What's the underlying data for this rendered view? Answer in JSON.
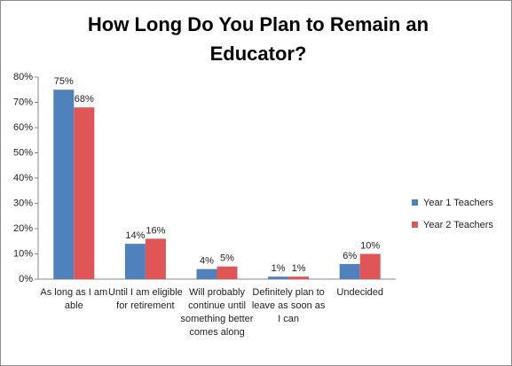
{
  "chart_data": {
    "type": "bar",
    "title": "How Long Do You Plan to Remain an Educator?",
    "categories": [
      "As long as I am able",
      "Until I am eligible for retirement",
      "Will probably continue until something better comes along",
      "Definitely plan to leave as soon as I can",
      "Undecided"
    ],
    "series": [
      {
        "name": "Year 1 Teachers",
        "color": "#4f81bd",
        "values": [
          75,
          14,
          4,
          1,
          6
        ],
        "value_labels": [
          "75%",
          "14%",
          "4%",
          "1%",
          "6%"
        ]
      },
      {
        "name": "Year 2 Teachers",
        "color": "#e05555",
        "values": [
          68,
          16,
          5,
          1,
          10
        ],
        "value_labels": [
          "68%",
          "16%",
          "5%",
          "1%",
          "10%"
        ]
      }
    ],
    "ylim": [
      0,
      80
    ],
    "yticks": [
      {
        "value": 0,
        "label": "0%"
      },
      {
        "value": 10,
        "label": "10%"
      },
      {
        "value": 20,
        "label": "20%"
      },
      {
        "value": 30,
        "label": "30%"
      },
      {
        "value": 40,
        "label": "40%"
      },
      {
        "value": 50,
        "label": "50%"
      },
      {
        "value": 60,
        "label": "60%"
      },
      {
        "value": 70,
        "label": "70%"
      },
      {
        "value": 80,
        "label": "80%"
      }
    ],
    "legend": "right"
  }
}
